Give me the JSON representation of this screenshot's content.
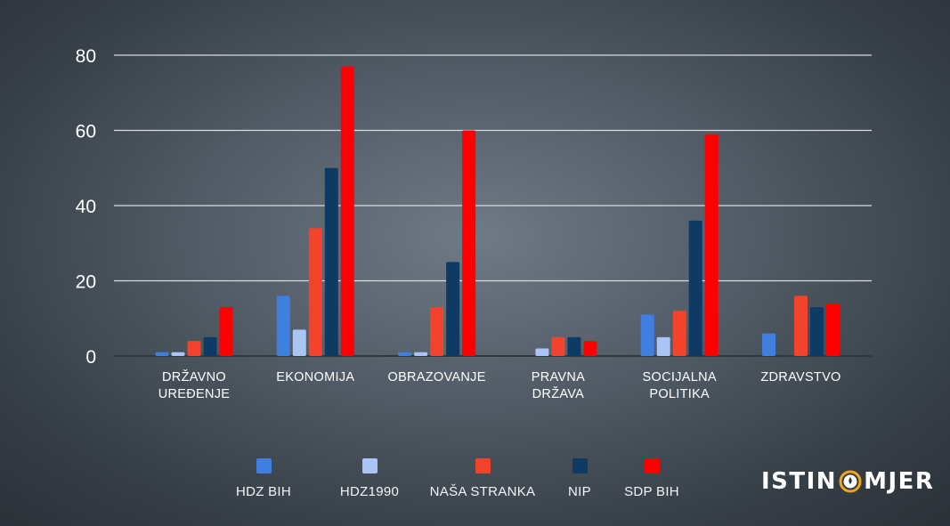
{
  "chart_data": {
    "type": "bar",
    "categories": [
      [
        "DRŽAVNO",
        "UREĐENJE"
      ],
      [
        "EKONOMIJA"
      ],
      [
        "OBRAZOVANJE"
      ],
      [
        "PRAVNA",
        "DRŽAVA"
      ],
      [
        "SOCIJALNA",
        "POLITIKA"
      ],
      [
        "ZDRAVSTVO"
      ]
    ],
    "series": [
      {
        "name": "HDZ BIH",
        "color": "#3f7fe0",
        "values": [
          1,
          16,
          1,
          0,
          11,
          6
        ]
      },
      {
        "name": "HDZ1990",
        "color": "#a9c4f5",
        "values": [
          1,
          7,
          1,
          2,
          5,
          0
        ]
      },
      {
        "name": "NAŠA STRANKA",
        "color": "#f4432c",
        "values": [
          4,
          34,
          13,
          5,
          12,
          16
        ]
      },
      {
        "name": "NIP",
        "color": "#0e3a66",
        "values": [
          5,
          50,
          25,
          5,
          36,
          13
        ]
      },
      {
        "name": "SDP BIH",
        "color": "#ff0000",
        "values": [
          13,
          77,
          60,
          4,
          59,
          14
        ]
      }
    ],
    "yticks": [
      0,
      20,
      40,
      60,
      80
    ],
    "ylim": [
      0,
      80
    ],
    "grid": true,
    "legend_position": "bottom"
  },
  "logo": {
    "text_before": "ISTIN",
    "text_after": "MJER"
  }
}
